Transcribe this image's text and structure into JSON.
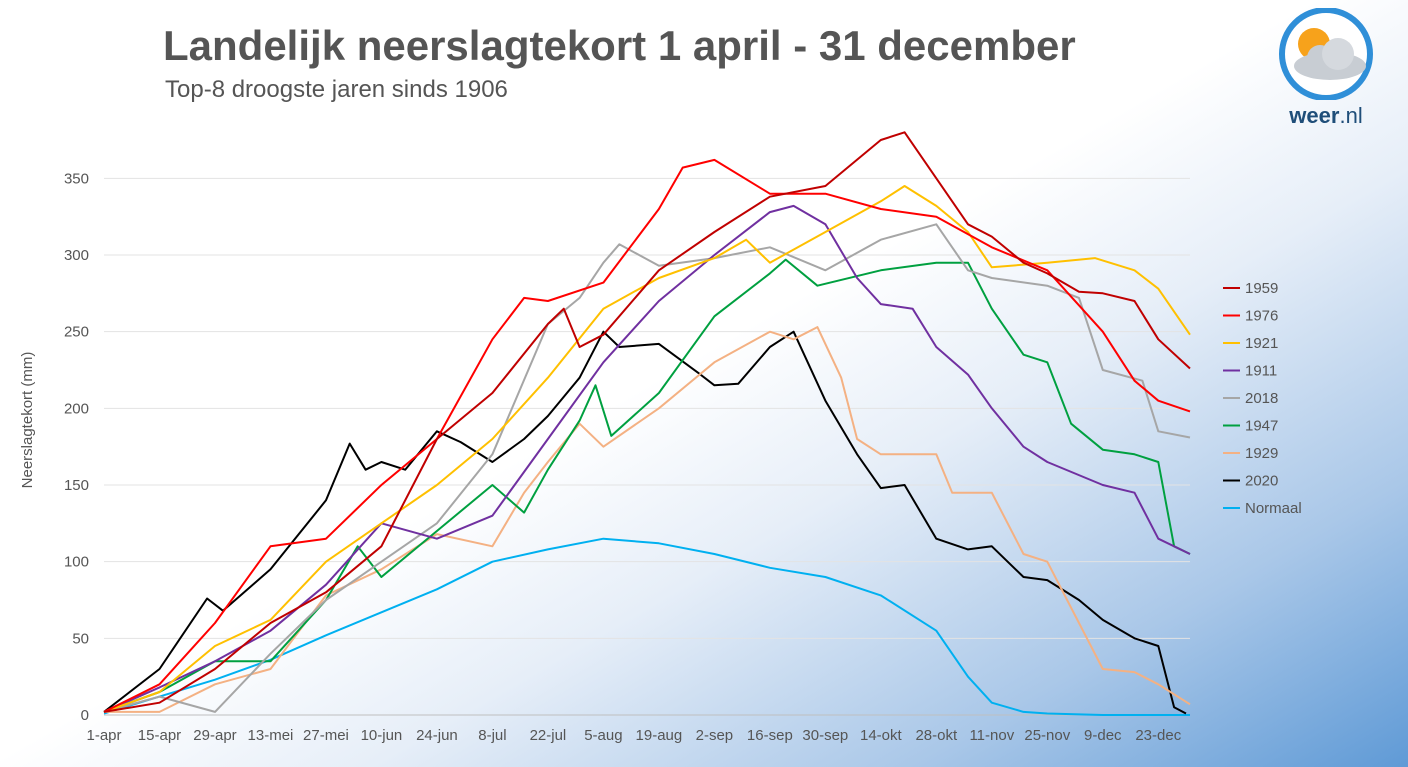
{
  "header": {
    "title": "Landelijk neerslagtekort 1 april - 31 december",
    "subtitle": "Top-8 droogste jaren sinds 1906"
  },
  "logo": {
    "brand": "weer",
    "dot": ".",
    "suffix": "nl"
  },
  "chart_data": {
    "type": "line",
    "title": "Landelijk neerslagtekort 1 april - 31 december",
    "subtitle": "Top-8 droogste jaren sinds 1906",
    "ylabel": "Neerslagtekort (mm)",
    "xlabel": "",
    "ylim": [
      0,
      350
    ],
    "yticks": [
      0,
      50,
      100,
      150,
      200,
      250,
      300,
      350
    ],
    "xlim": [
      0,
      274
    ],
    "xticks": [
      {
        "label": "1-apr",
        "day": 0
      },
      {
        "label": "15-apr",
        "day": 14
      },
      {
        "label": "29-apr",
        "day": 28
      },
      {
        "label": "13-mei",
        "day": 42
      },
      {
        "label": "27-mei",
        "day": 56
      },
      {
        "label": "10-jun",
        "day": 70
      },
      {
        "label": "24-jun",
        "day": 84
      },
      {
        "label": "8-jul",
        "day": 98
      },
      {
        "label": "22-jul",
        "day": 112
      },
      {
        "label": "5-aug",
        "day": 126
      },
      {
        "label": "19-aug",
        "day": 140
      },
      {
        "label": "2-sep",
        "day": 154
      },
      {
        "label": "16-sep",
        "day": 168
      },
      {
        "label": "30-sep",
        "day": 182
      },
      {
        "label": "14-okt",
        "day": 196
      },
      {
        "label": "28-okt",
        "day": 210
      },
      {
        "label": "11-nov",
        "day": 224
      },
      {
        "label": "25-nov",
        "day": 238
      },
      {
        "label": "9-dec",
        "day": 252
      },
      {
        "label": "23-dec",
        "day": 266
      }
    ],
    "grid": true,
    "legend_position": "right",
    "series": [
      {
        "name": "1959",
        "color": "#c00000",
        "points": [
          [
            0,
            2
          ],
          [
            14,
            8
          ],
          [
            28,
            30
          ],
          [
            42,
            60
          ],
          [
            56,
            80
          ],
          [
            70,
            110
          ],
          [
            84,
            180
          ],
          [
            98,
            210
          ],
          [
            112,
            255
          ],
          [
            116,
            265
          ],
          [
            120,
            240
          ],
          [
            126,
            248
          ],
          [
            140,
            290
          ],
          [
            154,
            315
          ],
          [
            168,
            338
          ],
          [
            182,
            345
          ],
          [
            196,
            375
          ],
          [
            202,
            380
          ],
          [
            210,
            350
          ],
          [
            218,
            320
          ],
          [
            224,
            312
          ],
          [
            232,
            295
          ],
          [
            238,
            288
          ],
          [
            246,
            276
          ],
          [
            252,
            275
          ],
          [
            260,
            270
          ],
          [
            266,
            245
          ],
          [
            274,
            226
          ]
        ]
      },
      {
        "name": "1976",
        "color": "#ff0000",
        "points": [
          [
            0,
            2
          ],
          [
            14,
            20
          ],
          [
            28,
            60
          ],
          [
            42,
            110
          ],
          [
            56,
            115
          ],
          [
            70,
            150
          ],
          [
            84,
            180
          ],
          [
            98,
            245
          ],
          [
            106,
            272
          ],
          [
            112,
            270
          ],
          [
            126,
            282
          ],
          [
            140,
            330
          ],
          [
            146,
            357
          ],
          [
            154,
            362
          ],
          [
            168,
            340
          ],
          [
            182,
            340
          ],
          [
            196,
            330
          ],
          [
            210,
            325
          ],
          [
            224,
            305
          ],
          [
            238,
            290
          ],
          [
            252,
            250
          ],
          [
            260,
            218
          ],
          [
            266,
            205
          ],
          [
            274,
            198
          ]
        ]
      },
      {
        "name": "1921",
        "color": "#ffc000",
        "points": [
          [
            0,
            2
          ],
          [
            14,
            15
          ],
          [
            28,
            45
          ],
          [
            42,
            62
          ],
          [
            56,
            100
          ],
          [
            70,
            125
          ],
          [
            84,
            150
          ],
          [
            98,
            180
          ],
          [
            112,
            220
          ],
          [
            126,
            265
          ],
          [
            140,
            285
          ],
          [
            154,
            298
          ],
          [
            162,
            310
          ],
          [
            166,
            300
          ],
          [
            168,
            295
          ],
          [
            182,
            315
          ],
          [
            196,
            335
          ],
          [
            202,
            345
          ],
          [
            210,
            332
          ],
          [
            218,
            315
          ],
          [
            224,
            292
          ],
          [
            238,
            295
          ],
          [
            250,
            298
          ],
          [
            260,
            290
          ],
          [
            266,
            278
          ],
          [
            274,
            248
          ]
        ]
      },
      {
        "name": "1911",
        "color": "#7030a0",
        "points": [
          [
            0,
            2
          ],
          [
            14,
            18
          ],
          [
            28,
            35
          ],
          [
            42,
            55
          ],
          [
            56,
            85
          ],
          [
            70,
            125
          ],
          [
            84,
            115
          ],
          [
            98,
            130
          ],
          [
            112,
            180
          ],
          [
            126,
            230
          ],
          [
            140,
            270
          ],
          [
            154,
            300
          ],
          [
            168,
            328
          ],
          [
            174,
            332
          ],
          [
            182,
            320
          ],
          [
            190,
            285
          ],
          [
            196,
            268
          ],
          [
            204,
            265
          ],
          [
            210,
            240
          ],
          [
            218,
            222
          ],
          [
            224,
            200
          ],
          [
            232,
            175
          ],
          [
            238,
            165
          ],
          [
            252,
            150
          ],
          [
            260,
            145
          ],
          [
            266,
            115
          ],
          [
            274,
            105
          ]
        ]
      },
      {
        "name": "2018",
        "color": "#a6a6a6",
        "points": [
          [
            0,
            2
          ],
          [
            14,
            12
          ],
          [
            28,
            2
          ],
          [
            42,
            40
          ],
          [
            56,
            75
          ],
          [
            70,
            100
          ],
          [
            84,
            125
          ],
          [
            98,
            170
          ],
          [
            112,
            255
          ],
          [
            120,
            272
          ],
          [
            126,
            295
          ],
          [
            130,
            307
          ],
          [
            140,
            293
          ],
          [
            154,
            298
          ],
          [
            168,
            305
          ],
          [
            182,
            290
          ],
          [
            196,
            310
          ],
          [
            210,
            320
          ],
          [
            218,
            290
          ],
          [
            224,
            285
          ],
          [
            238,
            280
          ],
          [
            246,
            272
          ],
          [
            252,
            225
          ],
          [
            262,
            218
          ],
          [
            266,
            185
          ],
          [
            274,
            181
          ]
        ]
      },
      {
        "name": "1947",
        "color": "#00a040",
        "points": [
          [
            0,
            2
          ],
          [
            14,
            15
          ],
          [
            28,
            35
          ],
          [
            42,
            35
          ],
          [
            56,
            75
          ],
          [
            64,
            110
          ],
          [
            70,
            90
          ],
          [
            84,
            120
          ],
          [
            98,
            150
          ],
          [
            106,
            132
          ],
          [
            112,
            160
          ],
          [
            120,
            192
          ],
          [
            124,
            215
          ],
          [
            128,
            182
          ],
          [
            140,
            210
          ],
          [
            154,
            260
          ],
          [
            168,
            288
          ],
          [
            172,
            297
          ],
          [
            180,
            280
          ],
          [
            196,
            290
          ],
          [
            210,
            295
          ],
          [
            218,
            295
          ],
          [
            224,
            265
          ],
          [
            232,
            235
          ],
          [
            238,
            230
          ],
          [
            244,
            190
          ],
          [
            252,
            173
          ],
          [
            260,
            170
          ],
          [
            266,
            165
          ],
          [
            270,
            110
          ],
          [
            274,
            105
          ]
        ]
      },
      {
        "name": "1929",
        "color": "#f4b183",
        "points": [
          [
            0,
            2
          ],
          [
            14,
            2
          ],
          [
            28,
            20
          ],
          [
            42,
            30
          ],
          [
            56,
            78
          ],
          [
            70,
            95
          ],
          [
            84,
            118
          ],
          [
            98,
            110
          ],
          [
            106,
            145
          ],
          [
            112,
            165
          ],
          [
            120,
            190
          ],
          [
            126,
            175
          ],
          [
            140,
            200
          ],
          [
            154,
            230
          ],
          [
            168,
            250
          ],
          [
            174,
            245
          ],
          [
            180,
            253
          ],
          [
            186,
            220
          ],
          [
            190,
            180
          ],
          [
            196,
            170
          ],
          [
            210,
            170
          ],
          [
            214,
            145
          ],
          [
            224,
            145
          ],
          [
            232,
            105
          ],
          [
            238,
            100
          ],
          [
            246,
            60
          ],
          [
            252,
            30
          ],
          [
            260,
            28
          ],
          [
            266,
            20
          ],
          [
            274,
            7
          ]
        ]
      },
      {
        "name": "2020",
        "color": "#000000",
        "points": [
          [
            0,
            2
          ],
          [
            14,
            30
          ],
          [
            26,
            76
          ],
          [
            30,
            68
          ],
          [
            42,
            95
          ],
          [
            56,
            140
          ],
          [
            62,
            177
          ],
          [
            66,
            160
          ],
          [
            70,
            165
          ],
          [
            76,
            160
          ],
          [
            84,
            185
          ],
          [
            90,
            178
          ],
          [
            98,
            165
          ],
          [
            106,
            180
          ],
          [
            112,
            195
          ],
          [
            120,
            220
          ],
          [
            126,
            250
          ],
          [
            130,
            240
          ],
          [
            140,
            242
          ],
          [
            150,
            223
          ],
          [
            154,
            215
          ],
          [
            160,
            216
          ],
          [
            168,
            240
          ],
          [
            174,
            250
          ],
          [
            182,
            205
          ],
          [
            190,
            170
          ],
          [
            196,
            148
          ],
          [
            202,
            150
          ],
          [
            210,
            115
          ],
          [
            218,
            108
          ],
          [
            224,
            110
          ],
          [
            232,
            90
          ],
          [
            238,
            88
          ],
          [
            246,
            75
          ],
          [
            252,
            62
          ],
          [
            260,
            50
          ],
          [
            266,
            45
          ],
          [
            270,
            5
          ],
          [
            273,
            1
          ]
        ]
      },
      {
        "name": "Normaal",
        "color": "#00b0f0",
        "points": [
          [
            0,
            1
          ],
          [
            14,
            12
          ],
          [
            28,
            23
          ],
          [
            42,
            36
          ],
          [
            56,
            52
          ],
          [
            70,
            67
          ],
          [
            84,
            82
          ],
          [
            98,
            100
          ],
          [
            112,
            108
          ],
          [
            126,
            115
          ],
          [
            140,
            112
          ],
          [
            154,
            105
          ],
          [
            168,
            96
          ],
          [
            182,
            90
          ],
          [
            196,
            78
          ],
          [
            210,
            55
          ],
          [
            218,
            25
          ],
          [
            224,
            8
          ],
          [
            232,
            2
          ],
          [
            238,
            1
          ],
          [
            252,
            0
          ],
          [
            274,
            0
          ]
        ]
      }
    ]
  }
}
